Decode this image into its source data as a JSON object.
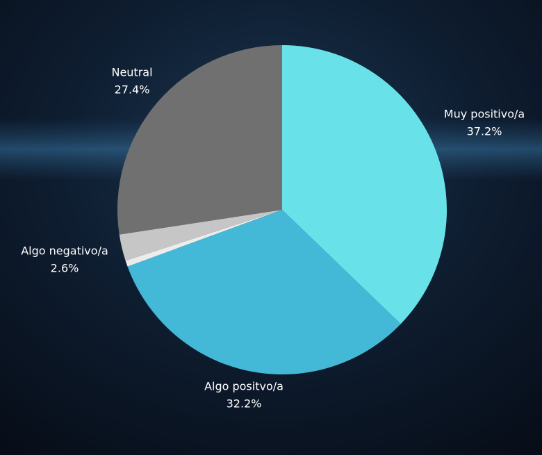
{
  "chart_data": {
    "type": "pie",
    "categories": [
      "Muy positivo/a",
      "Algo positvo/a",
      null,
      "Algo negativo/a",
      "Neutral"
    ],
    "values": [
      37.2,
      32.2,
      0.6,
      2.6,
      27.4
    ],
    "value_labels": [
      "37.2%",
      "32.2%",
      null,
      "2.6%",
      "27.4%"
    ],
    "colors": [
      "#68e2e8",
      "#44b8d7",
      "#ececec",
      "#c6c6c6",
      "#707070"
    ]
  }
}
